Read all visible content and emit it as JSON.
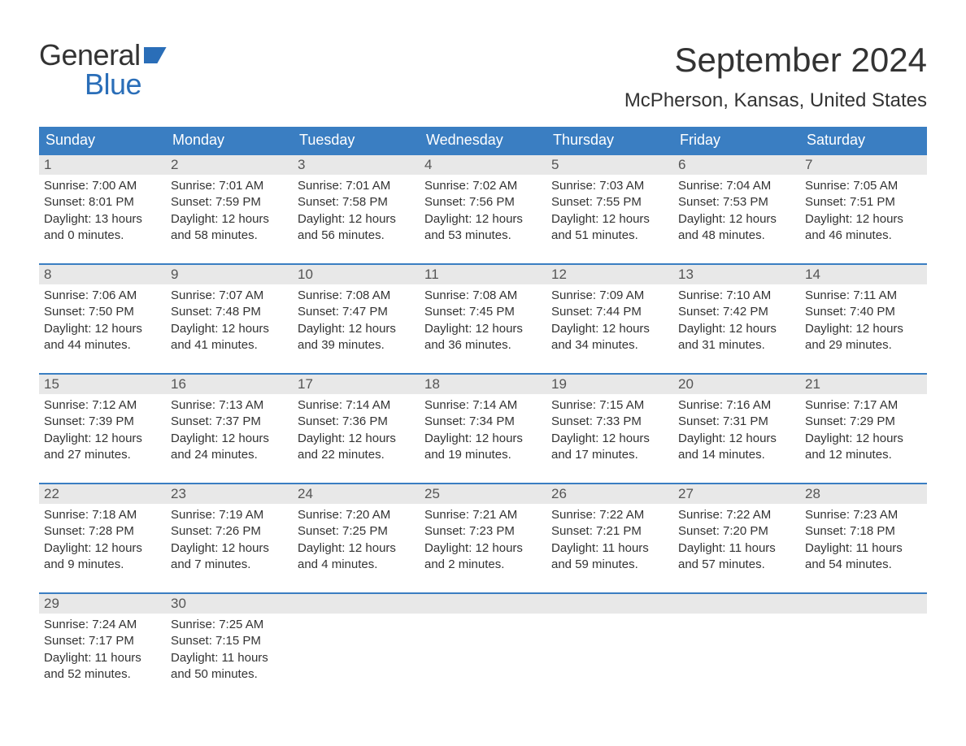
{
  "logo": {
    "text1": "General",
    "text2": "Blue"
  },
  "title": "September 2024",
  "location": "McPherson, Kansas, United States",
  "colors": {
    "header_bg": "#3a7ec2",
    "header_text": "#ffffff",
    "daynum_bg": "#e8e8e8",
    "week_border": "#3a7ec2",
    "logo_accent": "#2a6eb8",
    "body_text": "#333333",
    "background": "#ffffff"
  },
  "typography": {
    "title_fontsize": 42,
    "location_fontsize": 24,
    "weekday_fontsize": 18,
    "daynum_fontsize": 17,
    "body_fontsize": 15,
    "logo_fontsize": 36
  },
  "weekdays": [
    "Sunday",
    "Monday",
    "Tuesday",
    "Wednesday",
    "Thursday",
    "Friday",
    "Saturday"
  ],
  "weeks": [
    [
      {
        "n": "1",
        "sunrise": "Sunrise: 7:00 AM",
        "sunset": "Sunset: 8:01 PM",
        "day1": "Daylight: 13 hours",
        "day2": "and 0 minutes."
      },
      {
        "n": "2",
        "sunrise": "Sunrise: 7:01 AM",
        "sunset": "Sunset: 7:59 PM",
        "day1": "Daylight: 12 hours",
        "day2": "and 58 minutes."
      },
      {
        "n": "3",
        "sunrise": "Sunrise: 7:01 AM",
        "sunset": "Sunset: 7:58 PM",
        "day1": "Daylight: 12 hours",
        "day2": "and 56 minutes."
      },
      {
        "n": "4",
        "sunrise": "Sunrise: 7:02 AM",
        "sunset": "Sunset: 7:56 PM",
        "day1": "Daylight: 12 hours",
        "day2": "and 53 minutes."
      },
      {
        "n": "5",
        "sunrise": "Sunrise: 7:03 AM",
        "sunset": "Sunset: 7:55 PM",
        "day1": "Daylight: 12 hours",
        "day2": "and 51 minutes."
      },
      {
        "n": "6",
        "sunrise": "Sunrise: 7:04 AM",
        "sunset": "Sunset: 7:53 PM",
        "day1": "Daylight: 12 hours",
        "day2": "and 48 minutes."
      },
      {
        "n": "7",
        "sunrise": "Sunrise: 7:05 AM",
        "sunset": "Sunset: 7:51 PM",
        "day1": "Daylight: 12 hours",
        "day2": "and 46 minutes."
      }
    ],
    [
      {
        "n": "8",
        "sunrise": "Sunrise: 7:06 AM",
        "sunset": "Sunset: 7:50 PM",
        "day1": "Daylight: 12 hours",
        "day2": "and 44 minutes."
      },
      {
        "n": "9",
        "sunrise": "Sunrise: 7:07 AM",
        "sunset": "Sunset: 7:48 PM",
        "day1": "Daylight: 12 hours",
        "day2": "and 41 minutes."
      },
      {
        "n": "10",
        "sunrise": "Sunrise: 7:08 AM",
        "sunset": "Sunset: 7:47 PM",
        "day1": "Daylight: 12 hours",
        "day2": "and 39 minutes."
      },
      {
        "n": "11",
        "sunrise": "Sunrise: 7:08 AM",
        "sunset": "Sunset: 7:45 PM",
        "day1": "Daylight: 12 hours",
        "day2": "and 36 minutes."
      },
      {
        "n": "12",
        "sunrise": "Sunrise: 7:09 AM",
        "sunset": "Sunset: 7:44 PM",
        "day1": "Daylight: 12 hours",
        "day2": "and 34 minutes."
      },
      {
        "n": "13",
        "sunrise": "Sunrise: 7:10 AM",
        "sunset": "Sunset: 7:42 PM",
        "day1": "Daylight: 12 hours",
        "day2": "and 31 minutes."
      },
      {
        "n": "14",
        "sunrise": "Sunrise: 7:11 AM",
        "sunset": "Sunset: 7:40 PM",
        "day1": "Daylight: 12 hours",
        "day2": "and 29 minutes."
      }
    ],
    [
      {
        "n": "15",
        "sunrise": "Sunrise: 7:12 AM",
        "sunset": "Sunset: 7:39 PM",
        "day1": "Daylight: 12 hours",
        "day2": "and 27 minutes."
      },
      {
        "n": "16",
        "sunrise": "Sunrise: 7:13 AM",
        "sunset": "Sunset: 7:37 PM",
        "day1": "Daylight: 12 hours",
        "day2": "and 24 minutes."
      },
      {
        "n": "17",
        "sunrise": "Sunrise: 7:14 AM",
        "sunset": "Sunset: 7:36 PM",
        "day1": "Daylight: 12 hours",
        "day2": "and 22 minutes."
      },
      {
        "n": "18",
        "sunrise": "Sunrise: 7:14 AM",
        "sunset": "Sunset: 7:34 PM",
        "day1": "Daylight: 12 hours",
        "day2": "and 19 minutes."
      },
      {
        "n": "19",
        "sunrise": "Sunrise: 7:15 AM",
        "sunset": "Sunset: 7:33 PM",
        "day1": "Daylight: 12 hours",
        "day2": "and 17 minutes."
      },
      {
        "n": "20",
        "sunrise": "Sunrise: 7:16 AM",
        "sunset": "Sunset: 7:31 PM",
        "day1": "Daylight: 12 hours",
        "day2": "and 14 minutes."
      },
      {
        "n": "21",
        "sunrise": "Sunrise: 7:17 AM",
        "sunset": "Sunset: 7:29 PM",
        "day1": "Daylight: 12 hours",
        "day2": "and 12 minutes."
      }
    ],
    [
      {
        "n": "22",
        "sunrise": "Sunrise: 7:18 AM",
        "sunset": "Sunset: 7:28 PM",
        "day1": "Daylight: 12 hours",
        "day2": "and 9 minutes."
      },
      {
        "n": "23",
        "sunrise": "Sunrise: 7:19 AM",
        "sunset": "Sunset: 7:26 PM",
        "day1": "Daylight: 12 hours",
        "day2": "and 7 minutes."
      },
      {
        "n": "24",
        "sunrise": "Sunrise: 7:20 AM",
        "sunset": "Sunset: 7:25 PM",
        "day1": "Daylight: 12 hours",
        "day2": "and 4 minutes."
      },
      {
        "n": "25",
        "sunrise": "Sunrise: 7:21 AM",
        "sunset": "Sunset: 7:23 PM",
        "day1": "Daylight: 12 hours",
        "day2": "and 2 minutes."
      },
      {
        "n": "26",
        "sunrise": "Sunrise: 7:22 AM",
        "sunset": "Sunset: 7:21 PM",
        "day1": "Daylight: 11 hours",
        "day2": "and 59 minutes."
      },
      {
        "n": "27",
        "sunrise": "Sunrise: 7:22 AM",
        "sunset": "Sunset: 7:20 PM",
        "day1": "Daylight: 11 hours",
        "day2": "and 57 minutes."
      },
      {
        "n": "28",
        "sunrise": "Sunrise: 7:23 AM",
        "sunset": "Sunset: 7:18 PM",
        "day1": "Daylight: 11 hours",
        "day2": "and 54 minutes."
      }
    ],
    [
      {
        "n": "29",
        "sunrise": "Sunrise: 7:24 AM",
        "sunset": "Sunset: 7:17 PM",
        "day1": "Daylight: 11 hours",
        "day2": "and 52 minutes."
      },
      {
        "n": "30",
        "sunrise": "Sunrise: 7:25 AM",
        "sunset": "Sunset: 7:15 PM",
        "day1": "Daylight: 11 hours",
        "day2": "and 50 minutes."
      },
      {
        "n": "",
        "sunrise": "",
        "sunset": "",
        "day1": "",
        "day2": ""
      },
      {
        "n": "",
        "sunrise": "",
        "sunset": "",
        "day1": "",
        "day2": ""
      },
      {
        "n": "",
        "sunrise": "",
        "sunset": "",
        "day1": "",
        "day2": ""
      },
      {
        "n": "",
        "sunrise": "",
        "sunset": "",
        "day1": "",
        "day2": ""
      },
      {
        "n": "",
        "sunrise": "",
        "sunset": "",
        "day1": "",
        "day2": ""
      }
    ]
  ]
}
